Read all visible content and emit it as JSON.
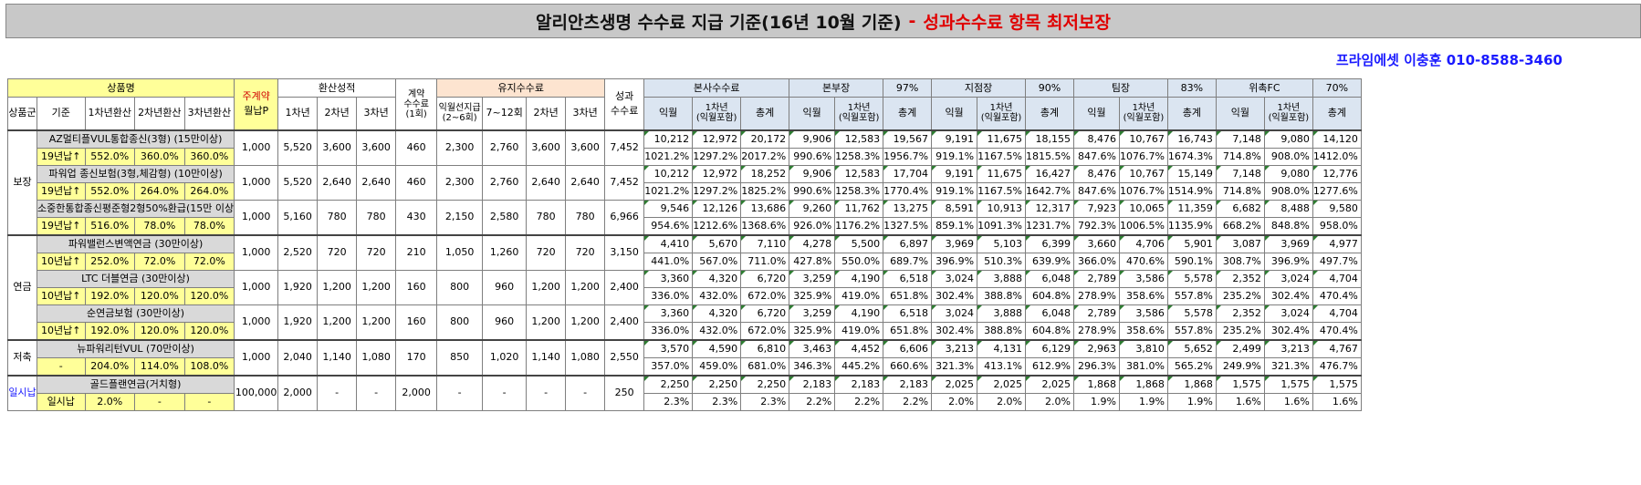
{
  "title": {
    "main": "알리안츠생명 수수료 지급 기준(16년 10월 기준)",
    "sep": "-",
    "highlight": "성과수수료 항목 최저보장"
  },
  "contact": "프라임에셋 이충훈 010-8588-3460",
  "headers": {
    "product_name": "상품명",
    "main_contract": "주계약",
    "monthly_p": "월납P",
    "conversion": "환산성적",
    "contract_fee": "계약\n수수료\n(1회)",
    "maintenance_fee": "유지수수료",
    "performance_fee": "성과\n수수료",
    "group": "상품군",
    "criteria": "기준",
    "conv1": "1차년환산",
    "conv2": "2차년환산",
    "conv3": "3차년환산",
    "y1": "1차년",
    "y2": "2차년",
    "y3": "3차년",
    "m_next": "익월선지급\n(2~6회)",
    "m_7_12": "7~12회",
    "m_y2": "2차년",
    "m_y3": "3차년",
    "next_month": "익월",
    "first_year_incl": "1차년\n(익월포함)",
    "total": "총계",
    "tiers": [
      {
        "name": "본사수수료",
        "pct": ""
      },
      {
        "name": "본부장",
        "pct": "97%"
      },
      {
        "name": "지점장",
        "pct": "90%"
      },
      {
        "name": "팀장",
        "pct": "83%"
      },
      {
        "name": "위촉FC",
        "pct": "70%"
      }
    ]
  },
  "groups": [
    {
      "name": "보장",
      "rows": 3
    },
    {
      "name": "연금",
      "rows": 3
    },
    {
      "name": "저축",
      "rows": 1
    },
    {
      "name": "일시납",
      "rows": 1
    }
  ],
  "products": [
    {
      "name": "AZ멀티플VUL통합종신(3형) (15만이상)",
      "criteria": "19년납↑",
      "c1": "552.0%",
      "c2": "360.0%",
      "c3": "360.0%",
      "monthly": "1,000",
      "y1": "5,520",
      "y2": "3,600",
      "y3": "3,600",
      "contract": "460",
      "m_next": "2,300",
      "m_7_12": "2,760",
      "m_y2": "3,600",
      "m_y3": "3,600",
      "perf": "7,452",
      "tiers_amt": [
        [
          "10,212",
          "12,972",
          "20,172"
        ],
        [
          "9,906",
          "12,583",
          "19,567"
        ],
        [
          "9,191",
          "11,675",
          "18,155"
        ],
        [
          "8,476",
          "10,767",
          "16,743"
        ],
        [
          "7,148",
          "9,080",
          "14,120"
        ]
      ],
      "tiers_pct": [
        [
          "1021.2%",
          "1297.2%",
          "2017.2%"
        ],
        [
          "990.6%",
          "1258.3%",
          "1956.7%"
        ],
        [
          "919.1%",
          "1167.5%",
          "1815.5%"
        ],
        [
          "847.6%",
          "1076.7%",
          "1674.3%"
        ],
        [
          "714.8%",
          "908.0%",
          "1412.0%"
        ]
      ]
    },
    {
      "name": "파워업 종신보험(3형,체감형) (10만이상)",
      "criteria": "19년납↑",
      "c1": "552.0%",
      "c2": "264.0%",
      "c3": "264.0%",
      "monthly": "1,000",
      "y1": "5,520",
      "y2": "2,640",
      "y3": "2,640",
      "contract": "460",
      "m_next": "2,300",
      "m_7_12": "2,760",
      "m_y2": "2,640",
      "m_y3": "2,640",
      "perf": "7,452",
      "tiers_amt": [
        [
          "10,212",
          "12,972",
          "18,252"
        ],
        [
          "9,906",
          "12,583",
          "17,704"
        ],
        [
          "9,191",
          "11,675",
          "16,427"
        ],
        [
          "8,476",
          "10,767",
          "15,149"
        ],
        [
          "7,148",
          "9,080",
          "12,776"
        ]
      ],
      "tiers_pct": [
        [
          "1021.2%",
          "1297.2%",
          "1825.2%"
        ],
        [
          "990.6%",
          "1258.3%",
          "1770.4%"
        ],
        [
          "919.1%",
          "1167.5%",
          "1642.7%"
        ],
        [
          "847.6%",
          "1076.7%",
          "1514.9%"
        ],
        [
          "714.8%",
          "908.0%",
          "1277.6%"
        ]
      ]
    },
    {
      "name": "소중한통합종신평준형2형50%환급(15만 이상",
      "criteria": "19년납↑",
      "c1": "516.0%",
      "c2": "78.0%",
      "c3": "78.0%",
      "monthly": "1,000",
      "y1": "5,160",
      "y2": "780",
      "y3": "780",
      "contract": "430",
      "m_next": "2,150",
      "m_7_12": "2,580",
      "m_y2": "780",
      "m_y3": "780",
      "perf": "6,966",
      "tiers_amt": [
        [
          "9,546",
          "12,126",
          "13,686"
        ],
        [
          "9,260",
          "11,762",
          "13,275"
        ],
        [
          "8,591",
          "10,913",
          "12,317"
        ],
        [
          "7,923",
          "10,065",
          "11,359"
        ],
        [
          "6,682",
          "8,488",
          "9,580"
        ]
      ],
      "tiers_pct": [
        [
          "954.6%",
          "1212.6%",
          "1368.6%"
        ],
        [
          "926.0%",
          "1176.2%",
          "1327.5%"
        ],
        [
          "859.1%",
          "1091.3%",
          "1231.7%"
        ],
        [
          "792.3%",
          "1006.5%",
          "1135.9%"
        ],
        [
          "668.2%",
          "848.8%",
          "958.0%"
        ]
      ]
    },
    {
      "name": "파워밸런스변액연금 (30만이상)",
      "criteria": "10년납↑",
      "c1": "252.0%",
      "c2": "72.0%",
      "c3": "72.0%",
      "monthly": "1,000",
      "y1": "2,520",
      "y2": "720",
      "y3": "720",
      "contract": "210",
      "m_next": "1,050",
      "m_7_12": "1,260",
      "m_y2": "720",
      "m_y3": "720",
      "perf": "3,150",
      "tiers_amt": [
        [
          "4,410",
          "5,670",
          "7,110"
        ],
        [
          "4,278",
          "5,500",
          "6,897"
        ],
        [
          "3,969",
          "5,103",
          "6,399"
        ],
        [
          "3,660",
          "4,706",
          "5,901"
        ],
        [
          "3,087",
          "3,969",
          "4,977"
        ]
      ],
      "tiers_pct": [
        [
          "441.0%",
          "567.0%",
          "711.0%"
        ],
        [
          "427.8%",
          "550.0%",
          "689.7%"
        ],
        [
          "396.9%",
          "510.3%",
          "639.9%"
        ],
        [
          "366.0%",
          "470.6%",
          "590.1%"
        ],
        [
          "308.7%",
          "396.9%",
          "497.7%"
        ]
      ]
    },
    {
      "name": "LTC 더블연금 (30만이상)",
      "criteria": "10년납↑",
      "c1": "192.0%",
      "c2": "120.0%",
      "c3": "120.0%",
      "monthly": "1,000",
      "y1": "1,920",
      "y2": "1,200",
      "y3": "1,200",
      "contract": "160",
      "m_next": "800",
      "m_7_12": "960",
      "m_y2": "1,200",
      "m_y3": "1,200",
      "perf": "2,400",
      "tiers_amt": [
        [
          "3,360",
          "4,320",
          "6,720"
        ],
        [
          "3,259",
          "4,190",
          "6,518"
        ],
        [
          "3,024",
          "3,888",
          "6,048"
        ],
        [
          "2,789",
          "3,586",
          "5,578"
        ],
        [
          "2,352",
          "3,024",
          "4,704"
        ]
      ],
      "tiers_pct": [
        [
          "336.0%",
          "432.0%",
          "672.0%"
        ],
        [
          "325.9%",
          "419.0%",
          "651.8%"
        ],
        [
          "302.4%",
          "388.8%",
          "604.8%"
        ],
        [
          "278.9%",
          "358.6%",
          "557.8%"
        ],
        [
          "235.2%",
          "302.4%",
          "470.4%"
        ]
      ]
    },
    {
      "name": "순연금보험 (30만이상)",
      "criteria": "10년납↑",
      "c1": "192.0%",
      "c2": "120.0%",
      "c3": "120.0%",
      "monthly": "1,000",
      "y1": "1,920",
      "y2": "1,200",
      "y3": "1,200",
      "contract": "160",
      "m_next": "800",
      "m_7_12": "960",
      "m_y2": "1,200",
      "m_y3": "1,200",
      "perf": "2,400",
      "tiers_amt": [
        [
          "3,360",
          "4,320",
          "6,720"
        ],
        [
          "3,259",
          "4,190",
          "6,518"
        ],
        [
          "3,024",
          "3,888",
          "6,048"
        ],
        [
          "2,789",
          "3,586",
          "5,578"
        ],
        [
          "2,352",
          "3,024",
          "4,704"
        ]
      ],
      "tiers_pct": [
        [
          "336.0%",
          "432.0%",
          "672.0%"
        ],
        [
          "325.9%",
          "419.0%",
          "651.8%"
        ],
        [
          "302.4%",
          "388.8%",
          "604.8%"
        ],
        [
          "278.9%",
          "358.6%",
          "557.8%"
        ],
        [
          "235.2%",
          "302.4%",
          "470.4%"
        ]
      ]
    },
    {
      "name": "뉴파워리턴VUL (70만이상)",
      "criteria": "-",
      "c1": "204.0%",
      "c2": "114.0%",
      "c3": "108.0%",
      "monthly": "1,000",
      "y1": "2,040",
      "y2": "1,140",
      "y3": "1,080",
      "contract": "170",
      "m_next": "850",
      "m_7_12": "1,020",
      "m_y2": "1,140",
      "m_y3": "1,080",
      "perf": "2,550",
      "tiers_amt": [
        [
          "3,570",
          "4,590",
          "6,810"
        ],
        [
          "3,463",
          "4,452",
          "6,606"
        ],
        [
          "3,213",
          "4,131",
          "6,129"
        ],
        [
          "2,963",
          "3,810",
          "5,652"
        ],
        [
          "2,499",
          "3,213",
          "4,767"
        ]
      ],
      "tiers_pct": [
        [
          "357.0%",
          "459.0%",
          "681.0%"
        ],
        [
          "346.3%",
          "445.2%",
          "660.6%"
        ],
        [
          "321.3%",
          "413.1%",
          "612.9%"
        ],
        [
          "296.3%",
          "381.0%",
          "565.2%"
        ],
        [
          "249.9%",
          "321.3%",
          "476.7%"
        ]
      ]
    },
    {
      "name": "골드플랜연금(거치형)",
      "criteria": "일시납",
      "c1": "2.0%",
      "c2": "-",
      "c3": "-",
      "monthly": "100,000",
      "y1": "2,000",
      "y2": "-",
      "y3": "-",
      "contract": "2,000",
      "m_next": "-",
      "m_7_12": "-",
      "m_y2": "-",
      "m_y3": "-",
      "perf": "250",
      "tiers_amt": [
        [
          "2,250",
          "2,250",
          "2,250"
        ],
        [
          "2,183",
          "2,183",
          "2,183"
        ],
        [
          "2,025",
          "2,025",
          "2,025"
        ],
        [
          "1,868",
          "1,868",
          "1,868"
        ],
        [
          "1,575",
          "1,575",
          "1,575"
        ]
      ],
      "tiers_pct": [
        [
          "2.3%",
          "2.3%",
          "2.3%"
        ],
        [
          "2.2%",
          "2.2%",
          "2.2%"
        ],
        [
          "2.0%",
          "2.0%",
          "2.0%"
        ],
        [
          "1.9%",
          "1.9%",
          "1.9%"
        ],
        [
          "1.6%",
          "1.6%",
          "1.6%"
        ]
      ]
    }
  ]
}
